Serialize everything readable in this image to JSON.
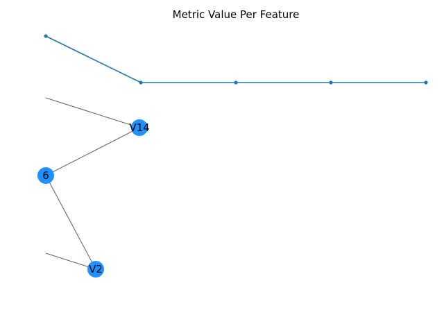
{
  "chart_data": [
    {
      "type": "line",
      "title": "Metric Value Per Feature",
      "series": [
        {
          "color": "#1f77b4",
          "y": [
            1.0,
            0.5,
            0.5,
            0.5,
            0.5
          ]
        }
      ]
    },
    {
      "type": "network",
      "node_color": "#1e90ff",
      "edge_color": "#666666",
      "nodes": [
        {
          "id": "V14",
          "label": "V14"
        },
        {
          "id": "V6",
          "label": "6"
        },
        {
          "id": "V2",
          "label": "V2"
        }
      ],
      "edges": [
        [
          "V6",
          "V14"
        ],
        [
          "V6",
          "V2"
        ]
      ],
      "partial_edges_to": [
        "V14",
        "V2"
      ]
    }
  ]
}
